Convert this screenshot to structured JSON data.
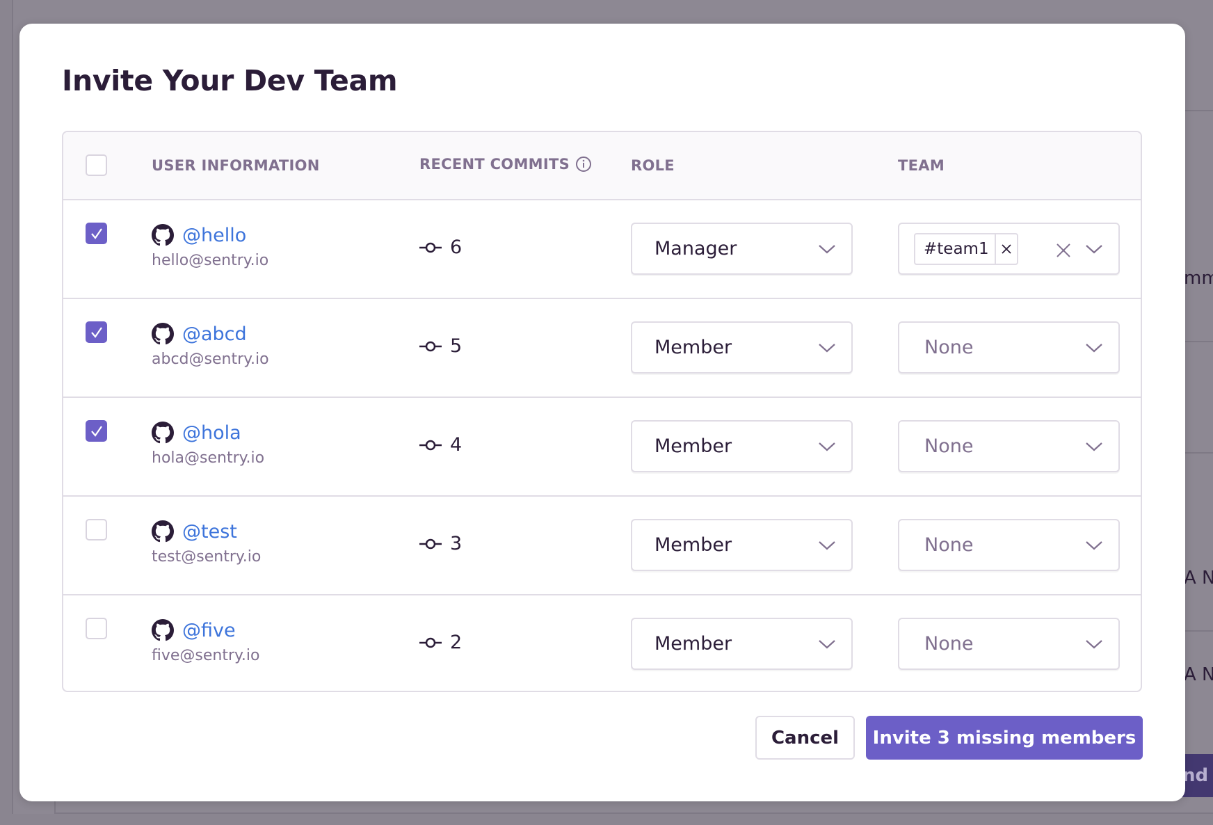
{
  "background": {
    "fragments": [
      "mmit",
      "A No",
      "A No"
    ],
    "button_fragment": "nd"
  },
  "modal": {
    "title": "Invite Your Dev Team",
    "columns": {
      "user": "USER INFORMATION",
      "commits": "RECENT COMMITS",
      "role": "ROLE",
      "team": "TEAM"
    },
    "rows": [
      {
        "username": "@hello",
        "email": "hello@sentry.io",
        "commits": "6",
        "role": "Manager",
        "team": "#team1",
        "checked": true
      },
      {
        "username": "@abcd",
        "email": "abcd@sentry.io",
        "commits": "5",
        "role": "Member",
        "team": "None",
        "checked": true
      },
      {
        "username": "@hola",
        "email": "hola@sentry.io",
        "commits": "4",
        "role": "Member",
        "team": "None",
        "checked": true
      },
      {
        "username": "@test",
        "email": "test@sentry.io",
        "commits": "3",
        "role": "Member",
        "team": "None",
        "checked": false
      },
      {
        "username": "@five",
        "email": "five@sentry.io",
        "commits": "2",
        "role": "Member",
        "team": "None",
        "checked": false
      }
    ],
    "cancel_label": "Cancel",
    "invite_label": "Invite 3 missing members"
  },
  "colors": {
    "accent": "#6c5fc7",
    "link": "#3d74db",
    "muted": "#80708f"
  }
}
